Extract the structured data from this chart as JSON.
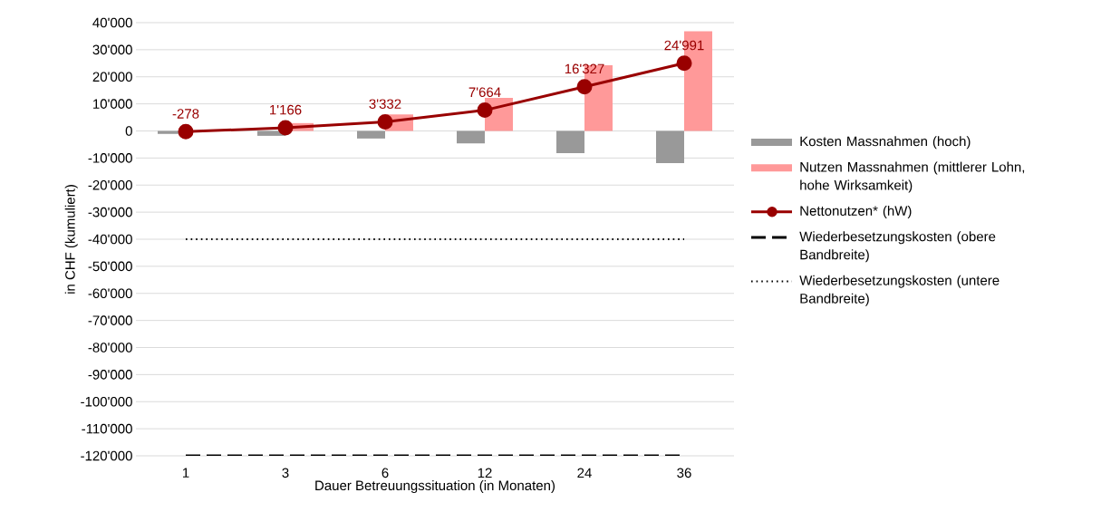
{
  "chart_data": {
    "type": "bar",
    "xlabel": "Dauer Betreuungssituation (in Monaten)",
    "ylabel": "in CHF (kumuliert)",
    "categories": [
      "1",
      "3",
      "6",
      "12",
      "24",
      "36"
    ],
    "ylim": [
      -120000,
      40000
    ],
    "yticks": [
      {
        "value": 40000,
        "label": "40'000"
      },
      {
        "value": 30000,
        "label": "30'000"
      },
      {
        "value": 20000,
        "label": "20'000"
      },
      {
        "value": 10000,
        "label": "10'000"
      },
      0,
      {
        "value": -10000,
        "label": "-10'000"
      },
      {
        "value": -20000,
        "label": "-20'000"
      },
      {
        "value": -30000,
        "label": "-30'000"
      },
      {
        "value": -40000,
        "label": "-40'000"
      },
      {
        "value": -50000,
        "label": "-50'000"
      },
      {
        "value": -60000,
        "label": "-60'000"
      },
      {
        "value": -70000,
        "label": "-70'000"
      },
      {
        "value": -80000,
        "label": "-80'000"
      },
      {
        "value": -90000,
        "label": "-90'000"
      },
      {
        "value": -100000,
        "label": "-100'000"
      },
      {
        "value": -110000,
        "label": "-110'000"
      },
      {
        "value": -120000,
        "label": "-120'000"
      }
    ],
    "grid": "y",
    "legend": "right",
    "series": [
      {
        "name": "Kosten Massnahmen (hoch)",
        "color": "#999999",
        "values": [
          -1100,
          -1800,
          -2800,
          -4600,
          -8200,
          -11900
        ]
      },
      {
        "name": "Nutzen Massnahmen (mittlerer Lohn, hohe Wirksamkeit)",
        "color": "#ff9999",
        "values": [
          null,
          2900,
          6100,
          12200,
          24300,
          36800
        ]
      },
      {
        "name": "Nettonutzen* (hW)",
        "type": "line",
        "color": "#990000",
        "marker": "circle",
        "values": [
          -278,
          1166,
          3332,
          7664,
          16327,
          24991
        ],
        "value_labels": [
          "-278",
          "1'166",
          "3'332",
          "7'664",
          "16'327",
          "24'991"
        ]
      },
      {
        "name": "Wiederbesetzungskosten (obere Bandbreite)",
        "type": "line",
        "color": "#000000",
        "marker": "none",
        "line_style": "dashed",
        "values": [
          -120000,
          -120000,
          -120000,
          -120000,
          -120000,
          -120000
        ]
      },
      {
        "name": "Wiederbesetzungskosten (untere Bandbreite)",
        "type": "line",
        "color": "#000000",
        "marker": "none",
        "line_style": "dotted",
        "values": [
          -40000,
          -40000,
          -40000,
          -40000,
          -40000,
          -40000
        ]
      }
    ]
  }
}
